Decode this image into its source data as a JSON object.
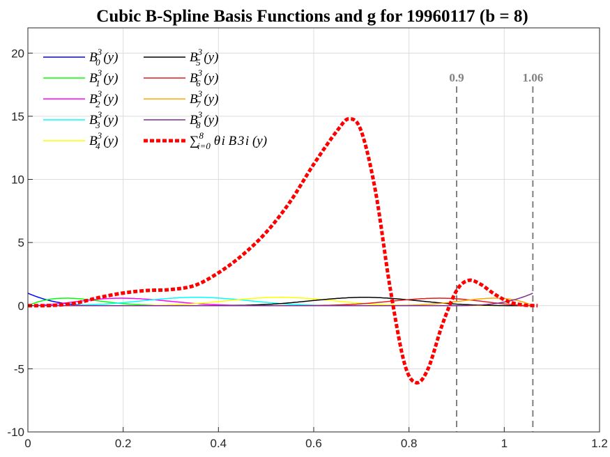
{
  "chart_data": {
    "type": "line",
    "title": "Cubic B-Spline Basis Functions and g for 19960117 (b = 8)",
    "xlim": [
      0,
      1.2
    ],
    "ylim": [
      -10,
      22
    ],
    "xticks": [
      0,
      0.2,
      0.4,
      0.6,
      0.8,
      1,
      1.2
    ],
    "xtick_labels": [
      "0",
      "0.2",
      "0.4",
      "0.6",
      "0.8",
      "1",
      "1.2"
    ],
    "yticks": [
      -10,
      -5,
      0,
      5,
      10,
      15,
      20
    ],
    "ytick_labels": [
      "-10",
      "-5",
      "0",
      "5",
      "10",
      "15",
      "20"
    ],
    "grid": true,
    "legend_position": "top-left",
    "basis": {
      "degree": 3,
      "knots": [
        0,
        0,
        0,
        0,
        0.1767,
        0.3533,
        0.53,
        0.7067,
        0.8833,
        1.06,
        1.06,
        1.06,
        1.06
      ],
      "peak_height": 0.66
    },
    "series": [
      {
        "name": "B_0^3(y)",
        "legend_main": "B",
        "legend_sup": "3",
        "legend_sub": "0",
        "legend_arg": "(y)",
        "color": "#0000ff",
        "kind": "basis",
        "index": 0
      },
      {
        "name": "B_1^3(y)",
        "legend_main": "B",
        "legend_sup": "3",
        "legend_sub": "1",
        "legend_arg": "(y)",
        "color": "#00ff00",
        "kind": "basis",
        "index": 1
      },
      {
        "name": "B_2^3(y)",
        "legend_main": "B",
        "legend_sup": "3",
        "legend_sub": "2",
        "legend_arg": "(y)",
        "color": "#ff00ff",
        "kind": "basis",
        "index": 2
      },
      {
        "name": "B_3^3(y)",
        "legend_main": "B",
        "legend_sup": "3",
        "legend_sub": "3",
        "legend_arg": "(y)",
        "color": "#00ffff",
        "kind": "basis",
        "index": 3
      },
      {
        "name": "B_4^3(y)",
        "legend_main": "B",
        "legend_sup": "3",
        "legend_sub": "4",
        "legend_arg": "(y)",
        "color": "#ffff00",
        "kind": "basis",
        "index": 4
      },
      {
        "name": "B_5^3(y)",
        "legend_main": "B",
        "legend_sup": "3",
        "legend_sub": "5",
        "legend_arg": "(y)",
        "color": "#000000",
        "kind": "basis",
        "index": 5
      },
      {
        "name": "B_6^3(y)",
        "legend_main": "B",
        "legend_sup": "3",
        "legend_sub": "6",
        "legend_arg": "(y)",
        "color": "#e41a1c",
        "kind": "basis",
        "index": 6
      },
      {
        "name": "B_7^3(y)",
        "legend_main": "B",
        "legend_sup": "3",
        "legend_sub": "7",
        "legend_arg": "(y)",
        "color": "#ffa500",
        "kind": "basis",
        "index": 7
      },
      {
        "name": "B_8^3(y)",
        "legend_main": "B",
        "legend_sup": "3",
        "legend_sub": "8",
        "legend_arg": "(y)",
        "color": "#7b2d8e",
        "kind": "basis",
        "index": 8
      },
      {
        "name": "sum_{i=0}^8 theta_i B_i^3(y)",
        "legend_main": "∑",
        "legend_sup": "8",
        "legend_sub": "i=0",
        "legend_arg": "θ i B 3 i (y)",
        "color": "#ff0000",
        "kind": "sum",
        "points": [
          [
            0,
            0
          ],
          [
            0.05,
            0.02
          ],
          [
            0.1,
            0.2
          ],
          [
            0.15,
            0.65
          ],
          [
            0.2,
            1.0
          ],
          [
            0.25,
            1.2
          ],
          [
            0.3,
            1.28
          ],
          [
            0.35,
            1.6
          ],
          [
            0.4,
            2.6
          ],
          [
            0.45,
            4.0
          ],
          [
            0.5,
            5.8
          ],
          [
            0.55,
            8.2
          ],
          [
            0.6,
            11.2
          ],
          [
            0.65,
            13.9
          ],
          [
            0.675,
            14.8
          ],
          [
            0.7,
            13.8
          ],
          [
            0.73,
            9.0
          ],
          [
            0.76,
            1.5
          ],
          [
            0.79,
            -4.5
          ],
          [
            0.815,
            -6.1
          ],
          [
            0.84,
            -5.0
          ],
          [
            0.87,
            -1.5
          ],
          [
            0.9,
            1.2
          ],
          [
            0.925,
            2.0
          ],
          [
            0.95,
            1.7
          ],
          [
            0.98,
            0.9
          ],
          [
            1.01,
            0.3
          ],
          [
            1.04,
            0.05
          ],
          [
            1.07,
            0
          ]
        ]
      }
    ],
    "reference_lines": [
      {
        "x": 0.9,
        "label": "0.9"
      },
      {
        "x": 1.06,
        "label": "1.06"
      }
    ]
  }
}
